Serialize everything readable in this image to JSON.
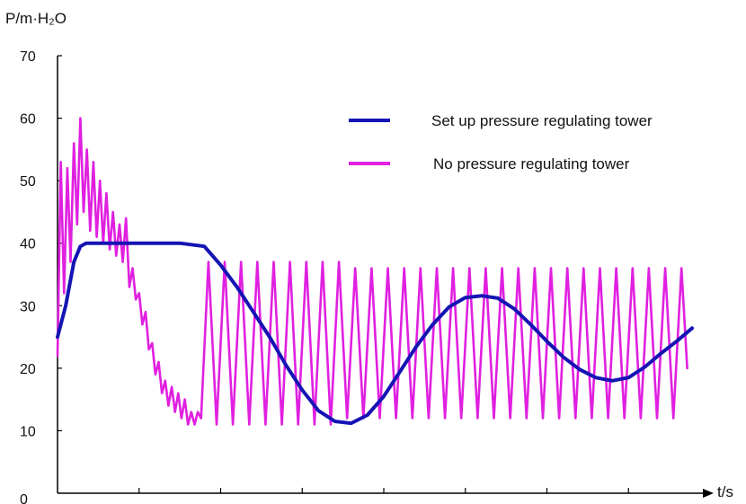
{
  "chart_data": {
    "type": "line",
    "ylabel": "P/m·H₂O",
    "xlabel": "t/s",
    "ylim": [
      0,
      70
    ],
    "yticks": [
      0,
      10,
      20,
      30,
      40,
      50,
      60,
      70
    ],
    "xlim": [
      0,
      8
    ],
    "xticks": [
      1,
      2,
      3,
      4,
      5,
      6,
      7
    ],
    "grid": false,
    "legend_position": "top-right",
    "series": [
      {
        "name": "Set up pressure regulating tower",
        "color": "#1414b4",
        "points": [
          [
            0.0,
            25
          ],
          [
            0.1,
            30
          ],
          [
            0.2,
            37
          ],
          [
            0.28,
            39.5
          ],
          [
            0.35,
            40
          ],
          [
            1.0,
            40
          ],
          [
            1.5,
            40
          ],
          [
            1.8,
            39.5
          ],
          [
            2.0,
            36.5
          ],
          [
            2.2,
            33
          ],
          [
            2.4,
            29
          ],
          [
            2.6,
            25
          ],
          [
            2.8,
            20.5
          ],
          [
            3.0,
            16.5
          ],
          [
            3.2,
            13.2
          ],
          [
            3.4,
            11.5
          ],
          [
            3.6,
            11.2
          ],
          [
            3.8,
            12.5
          ],
          [
            4.0,
            15.5
          ],
          [
            4.2,
            19.5
          ],
          [
            4.4,
            23.5
          ],
          [
            4.6,
            27
          ],
          [
            4.8,
            29.8
          ],
          [
            5.0,
            31.3
          ],
          [
            5.2,
            31.6
          ],
          [
            5.4,
            31.2
          ],
          [
            5.6,
            29.5
          ],
          [
            5.8,
            27
          ],
          [
            6.0,
            24.3
          ],
          [
            6.2,
            21.8
          ],
          [
            6.4,
            19.8
          ],
          [
            6.6,
            18.5
          ],
          [
            6.8,
            18.0
          ],
          [
            7.0,
            18.5
          ],
          [
            7.2,
            20.2
          ],
          [
            7.4,
            22.4
          ],
          [
            7.6,
            24.4
          ],
          [
            7.78,
            26.4
          ]
        ]
      },
      {
        "name": "No pressure regulating tower",
        "color": "#e020e0",
        "points": [
          [
            0.0,
            22
          ],
          [
            0.04,
            53
          ],
          [
            0.08,
            32
          ],
          [
            0.12,
            52
          ],
          [
            0.16,
            37
          ],
          [
            0.2,
            56
          ],
          [
            0.24,
            43
          ],
          [
            0.28,
            60
          ],
          [
            0.32,
            45
          ],
          [
            0.36,
            55
          ],
          [
            0.4,
            42
          ],
          [
            0.44,
            53
          ],
          [
            0.48,
            41
          ],
          [
            0.52,
            50
          ],
          [
            0.56,
            40
          ],
          [
            0.6,
            48
          ],
          [
            0.64,
            39
          ],
          [
            0.68,
            45
          ],
          [
            0.72,
            38
          ],
          [
            0.76,
            43
          ],
          [
            0.8,
            37
          ],
          [
            0.84,
            44
          ],
          [
            0.88,
            33
          ],
          [
            0.92,
            36
          ],
          [
            0.96,
            31
          ],
          [
            1.0,
            32
          ],
          [
            1.04,
            27
          ],
          [
            1.08,
            29
          ],
          [
            1.12,
            23
          ],
          [
            1.16,
            24
          ],
          [
            1.2,
            19
          ],
          [
            1.24,
            21
          ],
          [
            1.28,
            16
          ],
          [
            1.32,
            18
          ],
          [
            1.36,
            14
          ],
          [
            1.4,
            17
          ],
          [
            1.44,
            13
          ],
          [
            1.48,
            16
          ],
          [
            1.52,
            12
          ],
          [
            1.56,
            15
          ],
          [
            1.6,
            11
          ],
          [
            1.64,
            13
          ],
          [
            1.68,
            11
          ],
          [
            1.72,
            13
          ],
          [
            1.76,
            12
          ],
          [
            1.85,
            37
          ],
          [
            1.95,
            11
          ],
          [
            2.05,
            37
          ],
          [
            2.15,
            11
          ],
          [
            2.25,
            37
          ],
          [
            2.35,
            11
          ],
          [
            2.45,
            37
          ],
          [
            2.55,
            11
          ],
          [
            2.65,
            37
          ],
          [
            2.75,
            11
          ],
          [
            2.85,
            37
          ],
          [
            2.95,
            11
          ],
          [
            3.05,
            37
          ],
          [
            3.15,
            11
          ],
          [
            3.25,
            37
          ],
          [
            3.35,
            11
          ],
          [
            3.45,
            37
          ],
          [
            3.55,
            12
          ],
          [
            3.65,
            36
          ],
          [
            3.75,
            12
          ],
          [
            3.85,
            36
          ],
          [
            3.95,
            12
          ],
          [
            4.05,
            36
          ],
          [
            4.15,
            12
          ],
          [
            4.25,
            36
          ],
          [
            4.35,
            12
          ],
          [
            4.45,
            36
          ],
          [
            4.55,
            12
          ],
          [
            4.65,
            36
          ],
          [
            4.75,
            12
          ],
          [
            4.85,
            36
          ],
          [
            4.95,
            12
          ],
          [
            5.05,
            36
          ],
          [
            5.15,
            12
          ],
          [
            5.25,
            36
          ],
          [
            5.35,
            12
          ],
          [
            5.45,
            36
          ],
          [
            5.55,
            12
          ],
          [
            5.65,
            36
          ],
          [
            5.75,
            12
          ],
          [
            5.85,
            36
          ],
          [
            5.95,
            12
          ],
          [
            6.05,
            36
          ],
          [
            6.15,
            12
          ],
          [
            6.25,
            36
          ],
          [
            6.35,
            12
          ],
          [
            6.45,
            36
          ],
          [
            6.55,
            12
          ],
          [
            6.65,
            36
          ],
          [
            6.75,
            12
          ],
          [
            6.85,
            36
          ],
          [
            6.95,
            12
          ],
          [
            7.05,
            36
          ],
          [
            7.15,
            12
          ],
          [
            7.25,
            36
          ],
          [
            7.35,
            12
          ],
          [
            7.45,
            36
          ],
          [
            7.55,
            12
          ],
          [
            7.65,
            36
          ],
          [
            7.72,
            20
          ]
        ]
      }
    ]
  }
}
